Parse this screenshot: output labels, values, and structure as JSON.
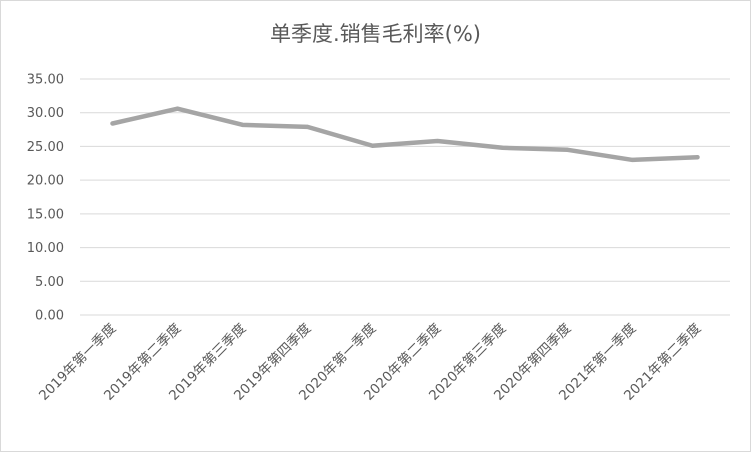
{
  "chart_data": {
    "type": "line",
    "title": "单季度.销售毛利率(%)",
    "xlabel": "",
    "ylabel": "",
    "categories": [
      "2019年第一季度",
      "2019年第二季度",
      "2019年第三季度",
      "2019年第四季度",
      "2020年第一季度",
      "2020年第二季度",
      "2020年第三季度",
      "2020年第四季度",
      "2021年第一季度",
      "2021年第二季度"
    ],
    "series": [
      {
        "values": [
          28.4,
          30.6,
          28.2,
          27.9,
          25.1,
          25.8,
          24.8,
          24.5,
          23.0,
          23.4
        ]
      }
    ],
    "ylim": [
      0,
      35
    ],
    "yticks": [
      "0.00",
      "5.00",
      "10.00",
      "15.00",
      "20.00",
      "25.00",
      "30.00",
      "35.00"
    ],
    "grid": true,
    "legend": "none",
    "colors": {
      "line": "#a5a5a5",
      "grid": "#d9d9d9",
      "text": "#595959"
    }
  }
}
